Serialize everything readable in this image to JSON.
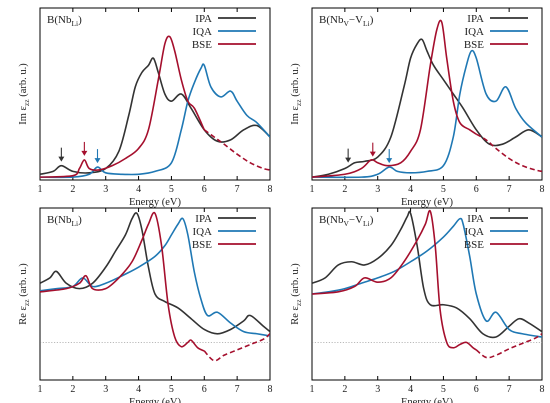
{
  "colors": {
    "IPA": "#333333",
    "IQA": "#1f78b4",
    "BSE": "#a50f2d",
    "axis": "#000000"
  },
  "chart_data": [
    {
      "type": "line",
      "panel_label": "B(Nb_Li)",
      "title_main": "B(Nb",
      "title_sub": "Li",
      "title_tail": ")",
      "ylabel_prefix": "Im ε",
      "ylabel_sub": "zz",
      "ylabel_suffix": " (arb. u.)",
      "xlabel": "Energy (eV)",
      "xlim": [
        1,
        8
      ],
      "ylim": [
        0,
        1.2
      ],
      "xticks": [
        "1",
        "2",
        "3",
        "4",
        "5",
        "6",
        "7",
        "8"
      ],
      "legend": [
        "IPA",
        "IQA",
        "BSE"
      ],
      "baseline": null,
      "arrows": [
        {
          "series": "IPA",
          "x": 1.65
        },
        {
          "series": "BSE",
          "x": 2.35
        },
        {
          "series": "IQA",
          "x": 2.75
        }
      ],
      "series": [
        {
          "name": "IPA",
          "x": [
            1.0,
            1.4,
            1.65,
            2.0,
            2.5,
            3.0,
            3.4,
            3.7,
            3.9,
            4.1,
            4.3,
            4.45,
            4.6,
            4.8,
            5.0,
            5.3,
            5.6,
            6.0,
            6.4,
            6.8,
            7.2,
            7.6,
            8.0
          ],
          "y": [
            0.04,
            0.06,
            0.1,
            0.06,
            0.05,
            0.08,
            0.2,
            0.45,
            0.65,
            0.75,
            0.8,
            0.85,
            0.75,
            0.6,
            0.55,
            0.6,
            0.5,
            0.35,
            0.27,
            0.28,
            0.35,
            0.38,
            0.3
          ]
        },
        {
          "name": "IQA",
          "x": [
            1.0,
            2.0,
            2.5,
            2.75,
            3.0,
            3.5,
            4.0,
            4.5,
            5.0,
            5.3,
            5.5,
            5.7,
            5.9,
            6.0,
            6.2,
            6.5,
            6.8,
            7.0,
            7.3,
            7.6,
            8.0
          ],
          "y": [
            0.02,
            0.02,
            0.04,
            0.09,
            0.05,
            0.04,
            0.04,
            0.06,
            0.12,
            0.35,
            0.55,
            0.68,
            0.78,
            0.8,
            0.65,
            0.58,
            0.62,
            0.55,
            0.45,
            0.4,
            0.3
          ]
        },
        {
          "name": "BSE",
          "x": [
            1.0,
            2.0,
            2.2,
            2.35,
            2.5,
            2.8,
            3.2,
            3.6,
            4.0,
            4.3,
            4.6,
            4.8,
            4.95,
            5.1,
            5.3,
            5.5,
            5.7,
            6.0
          ],
          "y": [
            0.02,
            0.03,
            0.08,
            0.14,
            0.08,
            0.07,
            0.1,
            0.15,
            0.22,
            0.35,
            0.7,
            0.95,
            1.0,
            0.9,
            0.7,
            0.55,
            0.5,
            0.35
          ]
        },
        {
          "name": "BSE-dashed",
          "x": [
            6.0,
            6.3,
            6.6,
            7.0,
            7.4,
            7.8,
            8.0
          ],
          "y": [
            0.35,
            0.3,
            0.25,
            0.18,
            0.12,
            0.08,
            0.07
          ]
        }
      ]
    },
    {
      "type": "line",
      "panel_label": "B(Nb_V-V_Li)",
      "title_main": "B(Nb",
      "title_sub": "V",
      "title_mid": "−V",
      "title_sub2": "Li",
      "title_tail": ")",
      "ylabel_prefix": "Im ε",
      "ylabel_sub": "zz",
      "ylabel_suffix": " (arb. u.)",
      "xlabel": "Energy (eV)",
      "xlim": [
        1,
        8
      ],
      "ylim": [
        0,
        1.2
      ],
      "xticks": [
        "1",
        "2",
        "3",
        "4",
        "5",
        "6",
        "7",
        "8"
      ],
      "legend": [
        "IPA",
        "IQA",
        "BSE"
      ],
      "baseline": null,
      "arrows": [
        {
          "series": "IPA",
          "x": 2.1
        },
        {
          "series": "BSE",
          "x": 2.85
        },
        {
          "series": "IQA",
          "x": 3.35
        }
      ],
      "series": [
        {
          "name": "IPA",
          "x": [
            1.0,
            1.5,
            2.0,
            2.3,
            2.6,
            3.0,
            3.4,
            3.8,
            4.0,
            4.2,
            4.35,
            4.5,
            4.7,
            5.0,
            5.3,
            5.6,
            6.0,
            6.4,
            6.8,
            7.2,
            7.6,
            8.0
          ],
          "y": [
            0.02,
            0.04,
            0.08,
            0.12,
            0.13,
            0.16,
            0.3,
            0.65,
            0.85,
            0.95,
            0.98,
            0.9,
            0.8,
            0.7,
            0.6,
            0.5,
            0.35,
            0.25,
            0.25,
            0.3,
            0.35,
            0.3
          ]
        },
        {
          "name": "IQA",
          "x": [
            1.0,
            2.5,
            3.0,
            3.35,
            3.6,
            4.0,
            4.5,
            5.0,
            5.3,
            5.5,
            5.7,
            5.85,
            6.0,
            6.3,
            6.6,
            6.9,
            7.2,
            7.5,
            8.0
          ],
          "y": [
            0.02,
            0.02,
            0.04,
            0.09,
            0.06,
            0.05,
            0.06,
            0.1,
            0.3,
            0.6,
            0.8,
            0.9,
            0.85,
            0.6,
            0.55,
            0.65,
            0.5,
            0.4,
            0.3
          ]
        },
        {
          "name": "BSE",
          "x": [
            1.0,
            2.0,
            2.5,
            2.8,
            3.0,
            3.3,
            3.7,
            4.0,
            4.3,
            4.6,
            4.8,
            4.95,
            5.1,
            5.3,
            5.5,
            5.8,
            6.0
          ],
          "y": [
            0.02,
            0.04,
            0.08,
            0.14,
            0.12,
            0.1,
            0.12,
            0.2,
            0.35,
            0.8,
            1.05,
            1.1,
            0.85,
            0.55,
            0.4,
            0.35,
            0.32
          ]
        },
        {
          "name": "BSE-dashed",
          "x": [
            6.0,
            6.3,
            6.6,
            7.0,
            7.4,
            7.8,
            8.0
          ],
          "y": [
            0.32,
            0.28,
            0.22,
            0.15,
            0.1,
            0.07,
            0.06
          ]
        }
      ]
    },
    {
      "type": "line",
      "panel_label": "B(Nb_Li)",
      "title_main": "B(Nb",
      "title_sub": "Li",
      "title_tail": ")",
      "ylabel_prefix": "Re ε",
      "ylabel_sub": "zz",
      "ylabel_suffix": " (arb. u.)",
      "xlabel": "Energy (eV)",
      "xlim": [
        1,
        8
      ],
      "ylim": [
        -0.35,
        1.25
      ],
      "xticks": [
        "1",
        "2",
        "3",
        "4",
        "5",
        "6",
        "7",
        "8"
      ],
      "legend": [
        "IPA",
        "IQA",
        "BSE"
      ],
      "baseline": 0,
      "arrows": [],
      "series": [
        {
          "name": "IPA",
          "x": [
            1.0,
            1.3,
            1.5,
            1.8,
            2.2,
            2.6,
            3.0,
            3.3,
            3.6,
            3.8,
            3.95,
            4.1,
            4.3,
            4.5,
            4.8,
            5.2,
            5.6,
            6.0,
            6.4,
            6.8,
            7.2,
            7.4,
            7.8,
            8.0
          ],
          "y": [
            0.55,
            0.6,
            0.66,
            0.55,
            0.5,
            0.55,
            0.7,
            0.85,
            1.0,
            1.15,
            1.2,
            1.05,
            0.7,
            0.45,
            0.38,
            0.32,
            0.22,
            0.12,
            0.08,
            0.12,
            0.2,
            0.25,
            0.15,
            0.1
          ]
        },
        {
          "name": "IQA",
          "x": [
            1.0,
            1.5,
            2.0,
            2.3,
            2.6,
            3.0,
            3.5,
            4.0,
            4.5,
            4.8,
            5.0,
            5.2,
            5.35,
            5.5,
            5.7,
            5.9,
            6.1,
            6.4,
            6.8,
            7.2,
            7.6,
            8.0
          ],
          "y": [
            0.48,
            0.5,
            0.52,
            0.6,
            0.52,
            0.55,
            0.62,
            0.7,
            0.8,
            0.9,
            1.0,
            1.1,
            1.15,
            1.0,
            0.65,
            0.4,
            0.25,
            0.28,
            0.18,
            0.1,
            0.08,
            0.06
          ]
        },
        {
          "name": "BSE",
          "x": [
            1.0,
            1.8,
            2.2,
            2.4,
            2.6,
            3.0,
            3.4,
            3.8,
            4.1,
            4.3,
            4.5,
            4.7,
            4.9,
            5.1,
            5.3,
            5.5,
            5.6,
            5.8,
            6.0
          ],
          "y": [
            0.47,
            0.5,
            0.55,
            0.62,
            0.5,
            0.5,
            0.6,
            0.75,
            0.95,
            1.1,
            1.2,
            0.9,
            0.35,
            0.05,
            -0.04,
            0.0,
            0.02,
            -0.05,
            -0.08
          ]
        },
        {
          "name": "BSE-dashed",
          "x": [
            6.0,
            6.3,
            6.6,
            7.0,
            7.4,
            7.8,
            8.0
          ],
          "y": [
            -0.08,
            -0.17,
            -0.12,
            -0.07,
            -0.02,
            0.03,
            0.08
          ]
        }
      ]
    },
    {
      "type": "line",
      "panel_label": "B(Nb_V-V_Li)",
      "title_main": "B(Nb",
      "title_sub": "V",
      "title_mid": "−V",
      "title_sub2": "Li",
      "title_tail": ")",
      "ylabel_prefix": "Re ε",
      "ylabel_sub": "zz",
      "ylabel_suffix": " (arb. u.)",
      "xlabel": "Energy (eV)",
      "xlim": [
        1,
        8
      ],
      "ylim": [
        -0.35,
        1.25
      ],
      "xticks": [
        "1",
        "2",
        "3",
        "4",
        "5",
        "6",
        "7",
        "8"
      ],
      "legend": [
        "IPA",
        "IQA",
        "BSE"
      ],
      "baseline": 0,
      "arrows": [],
      "series": [
        {
          "name": "IPA",
          "x": [
            1.0,
            1.4,
            1.8,
            2.2,
            2.6,
            3.0,
            3.4,
            3.7,
            3.9,
            4.0,
            4.2,
            4.4,
            4.6,
            5.0,
            5.4,
            5.8,
            6.2,
            6.6,
            7.0,
            7.3,
            7.6,
            8.0
          ],
          "y": [
            0.55,
            0.6,
            0.72,
            0.75,
            0.72,
            0.78,
            0.9,
            1.05,
            1.17,
            1.2,
            0.9,
            0.5,
            0.35,
            0.35,
            0.32,
            0.22,
            0.08,
            0.05,
            0.15,
            0.22,
            0.18,
            0.1
          ]
        },
        {
          "name": "IQA",
          "x": [
            1.0,
            1.5,
            2.0,
            2.5,
            3.0,
            3.5,
            4.0,
            4.5,
            5.0,
            5.3,
            5.5,
            5.6,
            5.8,
            6.0,
            6.3,
            6.6,
            7.0,
            7.4,
            8.0
          ],
          "y": [
            0.45,
            0.47,
            0.5,
            0.55,
            0.6,
            0.66,
            0.75,
            0.85,
            0.98,
            1.08,
            1.15,
            1.1,
            0.8,
            0.45,
            0.2,
            0.28,
            0.12,
            0.08,
            0.05
          ]
        },
        {
          "name": "BSE",
          "x": [
            1.0,
            1.8,
            2.3,
            2.6,
            3.0,
            3.4,
            3.8,
            4.2,
            4.45,
            4.6,
            4.75,
            4.9,
            5.1,
            5.3,
            5.5,
            5.7,
            5.9,
            6.0
          ],
          "y": [
            0.45,
            0.47,
            0.52,
            0.6,
            0.56,
            0.6,
            0.75,
            0.95,
            1.1,
            1.22,
            0.9,
            0.3,
            0.0,
            -0.05,
            -0.02,
            0.0,
            -0.05,
            -0.07
          ]
        },
        {
          "name": "BSE-dashed",
          "x": [
            6.0,
            6.3,
            6.6,
            7.0,
            7.4,
            7.8,
            8.0
          ],
          "y": [
            -0.07,
            -0.14,
            -0.12,
            -0.06,
            -0.01,
            0.04,
            0.08
          ]
        }
      ]
    }
  ]
}
